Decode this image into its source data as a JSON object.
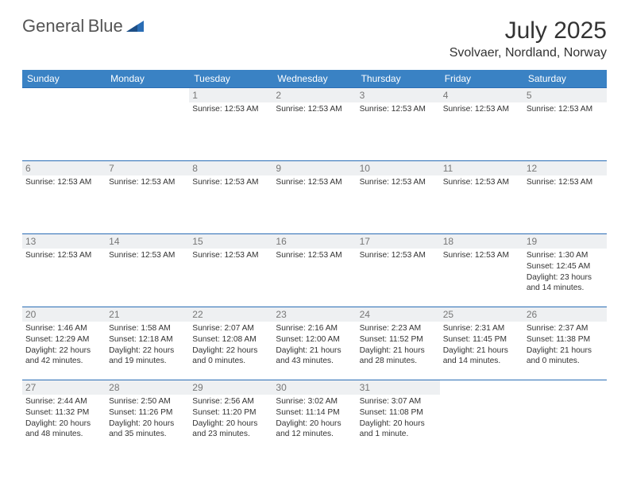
{
  "brand": {
    "name1": "General",
    "name2": "Blue"
  },
  "title": "July 2025",
  "location": "Svolvaer, Nordland, Norway",
  "colors": {
    "header_bg": "#3a82c4",
    "border": "#2a6db5",
    "daynum_bg": "#eef0f2",
    "daynum_fg": "#777"
  },
  "weekdays": [
    "Sunday",
    "Monday",
    "Tuesday",
    "Wednesday",
    "Thursday",
    "Friday",
    "Saturday"
  ],
  "weeks": [
    [
      {
        "n": "",
        "lines": []
      },
      {
        "n": "",
        "lines": []
      },
      {
        "n": "1",
        "lines": [
          "Sunrise: 12:53 AM"
        ]
      },
      {
        "n": "2",
        "lines": [
          "Sunrise: 12:53 AM"
        ]
      },
      {
        "n": "3",
        "lines": [
          "Sunrise: 12:53 AM"
        ]
      },
      {
        "n": "4",
        "lines": [
          "Sunrise: 12:53 AM"
        ]
      },
      {
        "n": "5",
        "lines": [
          "Sunrise: 12:53 AM"
        ]
      }
    ],
    [
      {
        "n": "6",
        "lines": [
          "Sunrise: 12:53 AM"
        ]
      },
      {
        "n": "7",
        "lines": [
          "Sunrise: 12:53 AM"
        ]
      },
      {
        "n": "8",
        "lines": [
          "Sunrise: 12:53 AM"
        ]
      },
      {
        "n": "9",
        "lines": [
          "Sunrise: 12:53 AM"
        ]
      },
      {
        "n": "10",
        "lines": [
          "Sunrise: 12:53 AM"
        ]
      },
      {
        "n": "11",
        "lines": [
          "Sunrise: 12:53 AM"
        ]
      },
      {
        "n": "12",
        "lines": [
          "Sunrise: 12:53 AM"
        ]
      }
    ],
    [
      {
        "n": "13",
        "lines": [
          "Sunrise: 12:53 AM"
        ]
      },
      {
        "n": "14",
        "lines": [
          "Sunrise: 12:53 AM"
        ]
      },
      {
        "n": "15",
        "lines": [
          "Sunrise: 12:53 AM"
        ]
      },
      {
        "n": "16",
        "lines": [
          "Sunrise: 12:53 AM"
        ]
      },
      {
        "n": "17",
        "lines": [
          "Sunrise: 12:53 AM"
        ]
      },
      {
        "n": "18",
        "lines": [
          "Sunrise: 12:53 AM"
        ]
      },
      {
        "n": "19",
        "lines": [
          "Sunrise: 1:30 AM",
          "Sunset: 12:45 AM",
          "Daylight: 23 hours and 14 minutes."
        ]
      }
    ],
    [
      {
        "n": "20",
        "lines": [
          "Sunrise: 1:46 AM",
          "Sunset: 12:29 AM",
          "Daylight: 22 hours and 42 minutes."
        ]
      },
      {
        "n": "21",
        "lines": [
          "Sunrise: 1:58 AM",
          "Sunset: 12:18 AM",
          "Daylight: 22 hours and 19 minutes."
        ]
      },
      {
        "n": "22",
        "lines": [
          "Sunrise: 2:07 AM",
          "Sunset: 12:08 AM",
          "Daylight: 22 hours and 0 minutes."
        ]
      },
      {
        "n": "23",
        "lines": [
          "Sunrise: 2:16 AM",
          "Sunset: 12:00 AM",
          "Daylight: 21 hours and 43 minutes."
        ]
      },
      {
        "n": "24",
        "lines": [
          "Sunrise: 2:23 AM",
          "Sunset: 11:52 PM",
          "Daylight: 21 hours and 28 minutes."
        ]
      },
      {
        "n": "25",
        "lines": [
          "Sunrise: 2:31 AM",
          "Sunset: 11:45 PM",
          "Daylight: 21 hours and 14 minutes."
        ]
      },
      {
        "n": "26",
        "lines": [
          "Sunrise: 2:37 AM",
          "Sunset: 11:38 PM",
          "Daylight: 21 hours and 0 minutes."
        ]
      }
    ],
    [
      {
        "n": "27",
        "lines": [
          "Sunrise: 2:44 AM",
          "Sunset: 11:32 PM",
          "Daylight: 20 hours and 48 minutes."
        ]
      },
      {
        "n": "28",
        "lines": [
          "Sunrise: 2:50 AM",
          "Sunset: 11:26 PM",
          "Daylight: 20 hours and 35 minutes."
        ]
      },
      {
        "n": "29",
        "lines": [
          "Sunrise: 2:56 AM",
          "Sunset: 11:20 PM",
          "Daylight: 20 hours and 23 minutes."
        ]
      },
      {
        "n": "30",
        "lines": [
          "Sunrise: 3:02 AM",
          "Sunset: 11:14 PM",
          "Daylight: 20 hours and 12 minutes."
        ]
      },
      {
        "n": "31",
        "lines": [
          "Sunrise: 3:07 AM",
          "Sunset: 11:08 PM",
          "Daylight: 20 hours and 1 minute."
        ]
      },
      {
        "n": "",
        "lines": []
      },
      {
        "n": "",
        "lines": []
      }
    ]
  ]
}
